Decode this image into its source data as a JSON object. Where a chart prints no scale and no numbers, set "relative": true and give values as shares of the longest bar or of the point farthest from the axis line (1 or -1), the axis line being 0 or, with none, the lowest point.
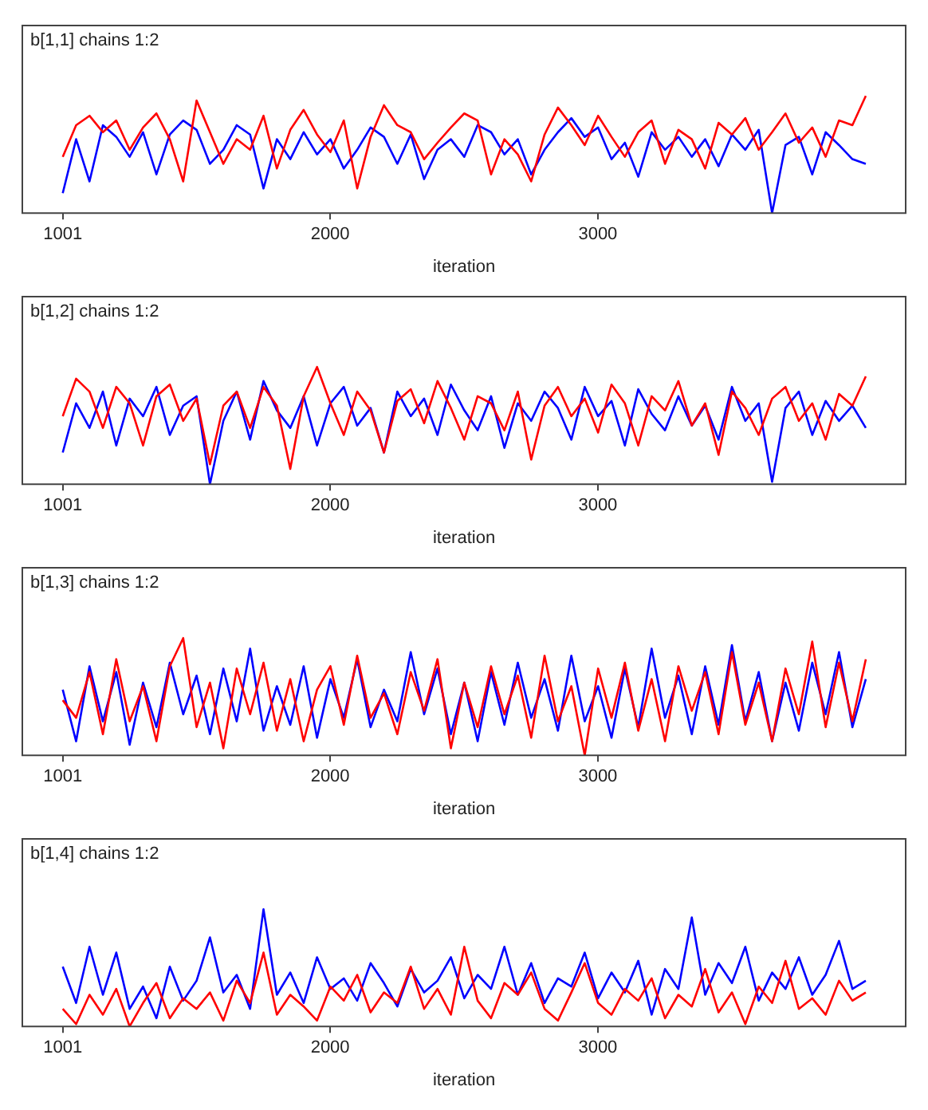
{
  "chart_data": [
    {
      "type": "line",
      "title": "b[1,1] chains 1:2",
      "xlabel": "iteration",
      "relative": true,
      "xlim": [
        850,
        4150
      ],
      "xticks": [
        1001,
        2000,
        3000
      ],
      "x": [
        1001,
        1051,
        1101,
        1151,
        1201,
        1251,
        1301,
        1351,
        1401,
        1451,
        1501,
        1551,
        1601,
        1651,
        1701,
        1751,
        1801,
        1851,
        1901,
        1951,
        2001,
        2051,
        2101,
        2151,
        2201,
        2251,
        2301,
        2351,
        2401,
        2451,
        2501,
        2551,
        2601,
        2651,
        2701,
        2751,
        2801,
        2851,
        2901,
        2951,
        3001,
        3051,
        3101,
        3151,
        3201,
        3251,
        3301,
        3351,
        3401,
        3451,
        3501,
        3551,
        3601,
        3651,
        3701,
        3751,
        3801,
        3851,
        3901,
        3951,
        4001
      ],
      "series": [
        {
          "color": "#ff0000",
          "values": [
            0.48,
            0.75,
            0.83,
            0.69,
            0.79,
            0.54,
            0.73,
            0.85,
            0.63,
            0.27,
            0.96,
            0.69,
            0.42,
            0.63,
            0.54,
            0.83,
            0.38,
            0.71,
            0.88,
            0.67,
            0.52,
            0.79,
            0.21,
            0.65,
            0.92,
            0.75,
            0.69,
            0.46,
            0.6,
            0.73,
            0.85,
            0.79,
            0.33,
            0.63,
            0.5,
            0.27,
            0.67,
            0.9,
            0.75,
            0.58,
            0.83,
            0.65,
            0.48,
            0.69,
            0.79,
            0.42,
            0.71,
            0.63,
            0.38,
            0.77,
            0.67,
            0.81,
            0.54,
            0.69,
            0.85,
            0.6,
            0.73,
            0.48,
            0.79,
            0.75,
            1
          ]
        },
        {
          "color": "#0000ff",
          "values": [
            0.17,
            0.63,
            0.27,
            0.75,
            0.65,
            0.48,
            0.69,
            0.33,
            0.67,
            0.79,
            0.71,
            0.42,
            0.54,
            0.75,
            0.67,
            0.21,
            0.63,
            0.46,
            0.69,
            0.5,
            0.63,
            0.38,
            0.54,
            0.73,
            0.65,
            0.42,
            0.67,
            0.29,
            0.54,
            0.63,
            0.48,
            0.75,
            0.69,
            0.5,
            0.63,
            0.33,
            0.54,
            0.69,
            0.81,
            0.65,
            0.73,
            0.46,
            0.6,
            0.31,
            0.69,
            0.54,
            0.65,
            0.48,
            0.63,
            0.4,
            0.67,
            0.54,
            0.71,
            0,
            0.58,
            0.65,
            0.33,
            0.69,
            0.58,
            0.46,
            0.42
          ]
        }
      ]
    },
    {
      "type": "line",
      "title": "b[1,2] chains 1:2",
      "xlabel": "iteration",
      "relative": true,
      "xlim": [
        850,
        4150
      ],
      "xticks": [
        1001,
        2000,
        3000
      ],
      "x": [
        1001,
        1051,
        1101,
        1151,
        1201,
        1251,
        1301,
        1351,
        1401,
        1451,
        1501,
        1551,
        1601,
        1651,
        1701,
        1751,
        1801,
        1851,
        1901,
        1951,
        2001,
        2051,
        2101,
        2151,
        2201,
        2251,
        2301,
        2351,
        2401,
        2451,
        2501,
        2551,
        2601,
        2651,
        2701,
        2751,
        2801,
        2851,
        2901,
        2951,
        3001,
        3051,
        3101,
        3151,
        3201,
        3251,
        3301,
        3351,
        3401,
        3451,
        3501,
        3551,
        3601,
        3651,
        3701,
        3751,
        3801,
        3851,
        3901,
        3951,
        4001
      ],
      "series": [
        {
          "color": "#ff0000",
          "values": [
            0.58,
            0.9,
            0.79,
            0.48,
            0.83,
            0.69,
            0.33,
            0.75,
            0.85,
            0.54,
            0.73,
            0.17,
            0.67,
            0.79,
            0.48,
            0.83,
            0.67,
            0.13,
            0.75,
            1,
            0.69,
            0.42,
            0.79,
            0.63,
            0.27,
            0.71,
            0.81,
            0.52,
            0.88,
            0.65,
            0.38,
            0.75,
            0.69,
            0.46,
            0.79,
            0.21,
            0.67,
            0.83,
            0.58,
            0.73,
            0.44,
            0.85,
            0.69,
            0.33,
            0.75,
            0.63,
            0.88,
            0.5,
            0.69,
            0.25,
            0.79,
            0.65,
            0.42,
            0.73,
            0.83,
            0.54,
            0.69,
            0.38,
            0.77,
            0.67,
            0.92
          ]
        },
        {
          "color": "#0000ff",
          "values": [
            0.27,
            0.69,
            0.48,
            0.79,
            0.33,
            0.73,
            0.58,
            0.83,
            0.42,
            0.67,
            0.75,
            0,
            0.54,
            0.79,
            0.38,
            0.88,
            0.63,
            0.48,
            0.75,
            0.33,
            0.69,
            0.83,
            0.5,
            0.65,
            0.27,
            0.79,
            0.58,
            0.73,
            0.42,
            0.85,
            0.63,
            0.46,
            0.75,
            0.31,
            0.69,
            0.54,
            0.79,
            0.65,
            0.38,
            0.83,
            0.58,
            0.71,
            0.33,
            0.81,
            0.6,
            0.46,
            0.75,
            0.5,
            0.67,
            0.38,
            0.83,
            0.54,
            0.69,
            0.02,
            0.65,
            0.79,
            0.42,
            0.71,
            0.54,
            0.67,
            0.48
          ]
        }
      ]
    },
    {
      "type": "line",
      "title": "b[1,3] chains 1:2",
      "xlabel": "iteration",
      "relative": true,
      "xlim": [
        850,
        4150
      ],
      "xticks": [
        1001,
        2000,
        3000
      ],
      "x": [
        1001,
        1051,
        1101,
        1151,
        1201,
        1251,
        1301,
        1351,
        1401,
        1451,
        1501,
        1551,
        1601,
        1651,
        1701,
        1751,
        1801,
        1851,
        1901,
        1951,
        2001,
        2051,
        2101,
        2151,
        2201,
        2251,
        2301,
        2351,
        2401,
        2451,
        2501,
        2551,
        2601,
        2651,
        2701,
        2751,
        2801,
        2851,
        2901,
        2951,
        3001,
        3051,
        3101,
        3151,
        3201,
        3251,
        3301,
        3351,
        3401,
        3451,
        3501,
        3551,
        3601,
        3651,
        3701,
        3751,
        3801,
        3851,
        3901,
        3951,
        4001
      ],
      "series": [
        {
          "color": "#ff0000",
          "values": [
            0.47,
            0.32,
            0.71,
            0.18,
            0.82,
            0.29,
            0.59,
            0.12,
            0.76,
            1,
            0.24,
            0.62,
            0.06,
            0.74,
            0.35,
            0.79,
            0.21,
            0.65,
            0.12,
            0.56,
            0.76,
            0.26,
            0.85,
            0.32,
            0.53,
            0.18,
            0.71,
            0.38,
            0.82,
            0.06,
            0.62,
            0.24,
            0.76,
            0.35,
            0.68,
            0.15,
            0.85,
            0.29,
            0.59,
            0,
            0.74,
            0.32,
            0.79,
            0.21,
            0.65,
            0.12,
            0.76,
            0.38,
            0.71,
            0.18,
            0.88,
            0.26,
            0.62,
            0.12,
            0.74,
            0.35,
            0.97,
            0.24,
            0.79,
            0.29,
            0.82
          ]
        },
        {
          "color": "#0000ff",
          "values": [
            0.56,
            0.12,
            0.76,
            0.29,
            0.71,
            0.09,
            0.62,
            0.24,
            0.79,
            0.35,
            0.68,
            0.18,
            0.74,
            0.29,
            0.91,
            0.21,
            0.59,
            0.26,
            0.76,
            0.15,
            0.65,
            0.32,
            0.82,
            0.24,
            0.56,
            0.29,
            0.88,
            0.35,
            0.74,
            0.18,
            0.62,
            0.12,
            0.71,
            0.26,
            0.79,
            0.32,
            0.65,
            0.21,
            0.85,
            0.29,
            0.59,
            0.15,
            0.74,
            0.24,
            0.91,
            0.32,
            0.68,
            0.18,
            0.76,
            0.26,
            0.94,
            0.29,
            0.71,
            0.12,
            0.62,
            0.21,
            0.79,
            0.35,
            0.88,
            0.24,
            0.65
          ]
        }
      ]
    },
    {
      "type": "line",
      "title": "b[1,4] chains 1:2",
      "xlabel": "iteration",
      "relative": true,
      "xlim": [
        850,
        4150
      ],
      "xticks": [
        1001,
        2000,
        3000
      ],
      "x": [
        1001,
        1051,
        1101,
        1151,
        1201,
        1251,
        1301,
        1351,
        1401,
        1451,
        1501,
        1551,
        1601,
        1651,
        1701,
        1751,
        1801,
        1851,
        1901,
        1951,
        2001,
        2051,
        2101,
        2151,
        2201,
        2251,
        2301,
        2351,
        2401,
        2451,
        2501,
        2551,
        2601,
        2651,
        2701,
        2751,
        2801,
        2851,
        2901,
        2951,
        3001,
        3051,
        3101,
        3151,
        3201,
        3251,
        3301,
        3351,
        3401,
        3451,
        3501,
        3551,
        3601,
        3651,
        3701,
        3751,
        3801,
        3851,
        3901,
        3951,
        4001
      ],
      "series": [
        {
          "color": "#ff0000",
          "values": [
            0.15,
            0.02,
            0.27,
            0.1,
            0.32,
            0,
            0.2,
            0.37,
            0.07,
            0.24,
            0.15,
            0.29,
            0.05,
            0.39,
            0.2,
            0.63,
            0.1,
            0.27,
            0.17,
            0.05,
            0.34,
            0.22,
            0.44,
            0.12,
            0.29,
            0.2,
            0.51,
            0.15,
            0.32,
            0.1,
            0.68,
            0.22,
            0.07,
            0.37,
            0.27,
            0.46,
            0.15,
            0.05,
            0.29,
            0.54,
            0.2,
            0.1,
            0.32,
            0.22,
            0.41,
            0.07,
            0.27,
            0.17,
            0.49,
            0.12,
            0.29,
            0.02,
            0.34,
            0.2,
            0.56,
            0.15,
            0.24,
            0.1,
            0.39,
            0.22,
            0.29
          ]
        },
        {
          "color": "#0000ff",
          "values": [
            0.51,
            0.2,
            0.68,
            0.27,
            0.63,
            0.15,
            0.34,
            0.07,
            0.51,
            0.22,
            0.39,
            0.76,
            0.29,
            0.44,
            0.15,
            1,
            0.27,
            0.46,
            0.2,
            0.59,
            0.32,
            0.41,
            0.22,
            0.54,
            0.37,
            0.17,
            0.49,
            0.29,
            0.39,
            0.59,
            0.24,
            0.44,
            0.32,
            0.68,
            0.27,
            0.54,
            0.2,
            0.41,
            0.34,
            0.63,
            0.24,
            0.46,
            0.29,
            0.56,
            0.1,
            0.49,
            0.32,
            0.93,
            0.27,
            0.54,
            0.37,
            0.68,
            0.22,
            0.46,
            0.32,
            0.59,
            0.27,
            0.44,
            0.73,
            0.32,
            0.39
          ]
        }
      ]
    }
  ]
}
